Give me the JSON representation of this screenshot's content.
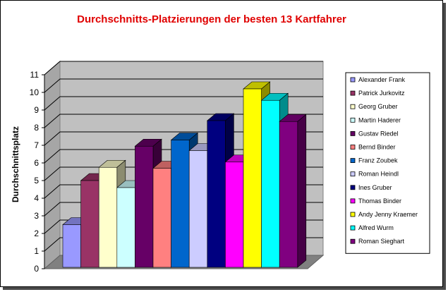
{
  "chart_data": {
    "type": "bar",
    "title": "Durchschnitts-Platzierungen der besten 13 Kartfahrer",
    "ylabel": "Durchschnittsplatz",
    "xlabel": "",
    "ylim": [
      0,
      11
    ],
    "yticks": [
      "0",
      "1",
      "2",
      "3",
      "4",
      "5",
      "6",
      "7",
      "8",
      "9",
      "10",
      "11"
    ],
    "grid": true,
    "legend_position": "right",
    "series": [
      {
        "name": "Alexander Frank",
        "value": 2.5,
        "color": "#9999ff"
      },
      {
        "name": "Patrick Jurkovitz",
        "value": 5.0,
        "color": "#993366"
      },
      {
        "name": "Georg Gruber",
        "value": 5.75,
        "color": "#ffffcc"
      },
      {
        "name": "Martin Haderer",
        "value": 4.6,
        "color": "#ccffff"
      },
      {
        "name": "Gustav Riedel",
        "value": 6.95,
        "color": "#660066"
      },
      {
        "name": "Bernd Binder",
        "value": 5.7,
        "color": "#ff8080"
      },
      {
        "name": "Franz Zoubek",
        "value": 7.3,
        "color": "#0066cc"
      },
      {
        "name": "Roman Heindl",
        "value": 6.7,
        "color": "#ccccff"
      },
      {
        "name": "Ines Gruber",
        "value": 8.4,
        "color": "#000080"
      },
      {
        "name": "Thomas Binder",
        "value": 6.05,
        "color": "#ff00ff"
      },
      {
        "name": "Andy Jenny Kraemer",
        "value": 10.2,
        "color": "#ffff00"
      },
      {
        "name": "Alfred Wurm",
        "value": 9.55,
        "color": "#00ffff"
      },
      {
        "name": "Roman Sieghart",
        "value": 8.35,
        "color": "#800080"
      }
    ]
  },
  "colors": {
    "title": "#e00000",
    "wall": "#c0c0c0",
    "floor": "#808080",
    "gridline": "#000000"
  }
}
